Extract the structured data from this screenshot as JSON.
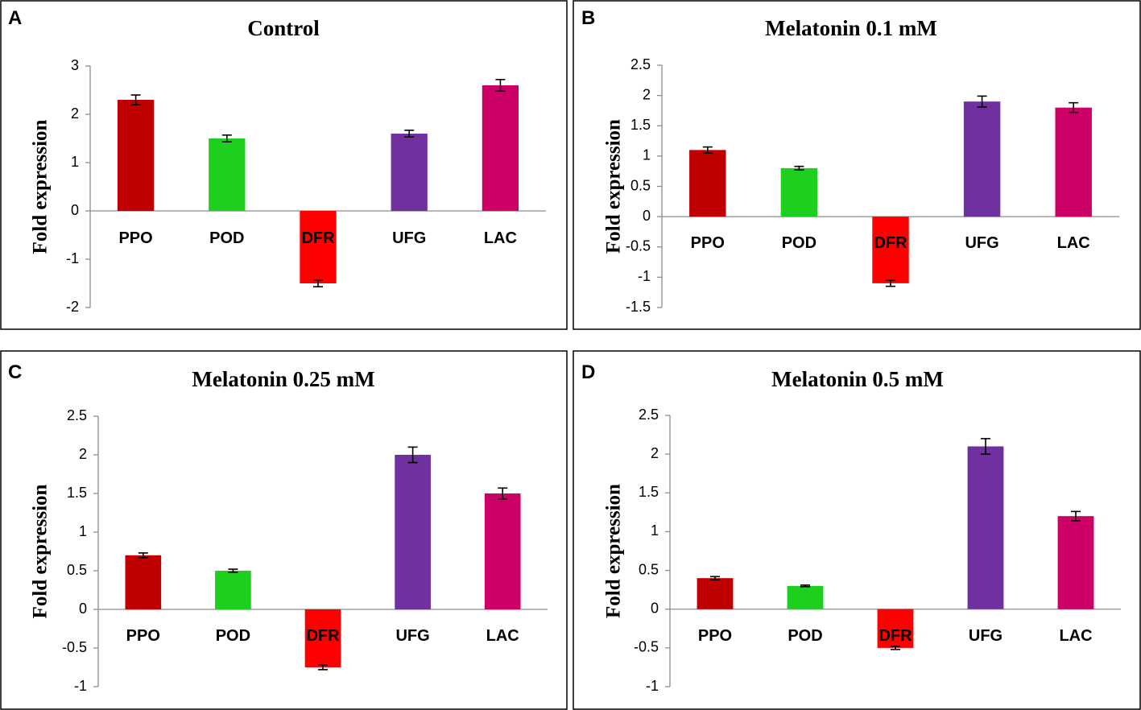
{
  "chart_data": [
    {
      "panel": "A",
      "type": "bar",
      "title": "Control",
      "xlabel": "",
      "ylabel": "Fold expression",
      "categories": [
        "PPO",
        "POD",
        "DFR",
        "UFG",
        "LAC"
      ],
      "values": [
        2.3,
        1.5,
        -1.5,
        1.6,
        2.6
      ],
      "errors": [
        0.1,
        0.07,
        0.07,
        0.07,
        0.12
      ],
      "colors": [
        "#c00000",
        "#1ed01e",
        "#ff0000",
        "#7030a0",
        "#cc0066"
      ],
      "ylim": [
        -2,
        3
      ],
      "yticks": [
        3,
        2,
        1,
        0,
        -1,
        -2
      ],
      "ytick_labels": [
        "3",
        "2",
        "1",
        "0",
        "-1",
        "-2"
      ],
      "grid": false
    },
    {
      "panel": "B",
      "type": "bar",
      "title": "Melatonin 0.1 mM",
      "xlabel": "",
      "ylabel": "Fold expression",
      "categories": [
        "PPO",
        "POD",
        "DFR",
        "UFG",
        "LAC"
      ],
      "values": [
        1.1,
        0.8,
        -1.1,
        1.9,
        1.8
      ],
      "errors": [
        0.05,
        0.03,
        0.05,
        0.09,
        0.08
      ],
      "colors": [
        "#c00000",
        "#1ed01e",
        "#ff0000",
        "#7030a0",
        "#cc0066"
      ],
      "ylim": [
        -1.5,
        2.5
      ],
      "yticks": [
        2.5,
        2,
        1.5,
        1,
        0.5,
        0,
        -0.5,
        -1,
        -1.5
      ],
      "ytick_labels": [
        "2.5",
        "2",
        "1.5",
        "1",
        "0.5",
        "0",
        "-0.5",
        "-1",
        "-1.5"
      ],
      "grid": false
    },
    {
      "panel": "C",
      "type": "bar",
      "title": "Melatonin 0.25 mM",
      "xlabel": "",
      "ylabel": "Fold expression",
      "categories": [
        "PPO",
        "POD",
        "DFR",
        "UFG",
        "LAC"
      ],
      "values": [
        0.7,
        0.5,
        -0.75,
        2.0,
        1.5
      ],
      "errors": [
        0.03,
        0.02,
        0.03,
        0.1,
        0.07
      ],
      "colors": [
        "#c00000",
        "#1ed01e",
        "#ff0000",
        "#7030a0",
        "#cc0066"
      ],
      "ylim": [
        -1,
        2.5
      ],
      "yticks": [
        2.5,
        2,
        1.5,
        1,
        0.5,
        0,
        -0.5,
        -1
      ],
      "ytick_labels": [
        "2.5",
        "2",
        "1.5",
        "1",
        "0.5",
        "0",
        "-0.5",
        "-1"
      ],
      "grid": false
    },
    {
      "panel": "D",
      "type": "bar",
      "title": "Melatonin 0.5 mM",
      "xlabel": "",
      "ylabel": "Fold expression",
      "categories": [
        "PPO",
        "POD",
        "DFR",
        "UFG",
        "LAC"
      ],
      "values": [
        0.4,
        0.3,
        -0.5,
        2.1,
        1.2
      ],
      "errors": [
        0.02,
        0.01,
        0.02,
        0.1,
        0.06
      ],
      "colors": [
        "#c00000",
        "#1ed01e",
        "#ff0000",
        "#7030a0",
        "#cc0066"
      ],
      "ylim": [
        -1,
        2.5
      ],
      "yticks": [
        2.5,
        2,
        1.5,
        1,
        0.5,
        0,
        -0.5,
        -1
      ],
      "ytick_labels": [
        "2.5",
        "2",
        "1.5",
        "1",
        "0.5",
        "0",
        "-0.5",
        "-1"
      ],
      "grid": false
    }
  ]
}
